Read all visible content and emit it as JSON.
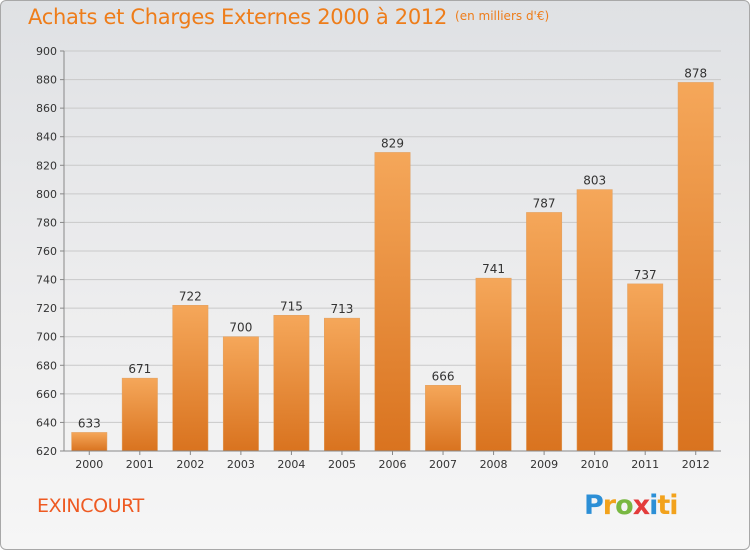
{
  "title": {
    "main": "Achats et Charges Externes 2000 à 2012",
    "unit": "(en milliers d'€)"
  },
  "commune": "EXINCOURT",
  "logo": {
    "text": "Proxiti",
    "letters": [
      "P",
      "r",
      "o",
      "x",
      "i",
      "ti"
    ]
  },
  "colors": {
    "title": "#ee7d1a",
    "bar_light": "#f5a75a",
    "bar_dark": "#d9731f",
    "commune": "#ee5a22"
  },
  "chart_data": {
    "type": "bar",
    "categories": [
      "2000",
      "2001",
      "2002",
      "2003",
      "2004",
      "2005",
      "2006",
      "2007",
      "2008",
      "2009",
      "2010",
      "2011",
      "2012"
    ],
    "values": [
      633,
      671,
      722,
      700,
      715,
      713,
      829,
      666,
      741,
      787,
      803,
      737,
      878
    ],
    "ylim": [
      620,
      900
    ],
    "yticks": [
      620,
      640,
      660,
      680,
      700,
      720,
      740,
      760,
      780,
      800,
      820,
      840,
      860,
      880,
      900
    ],
    "grid": true,
    "xlabel": "",
    "ylabel": ""
  }
}
